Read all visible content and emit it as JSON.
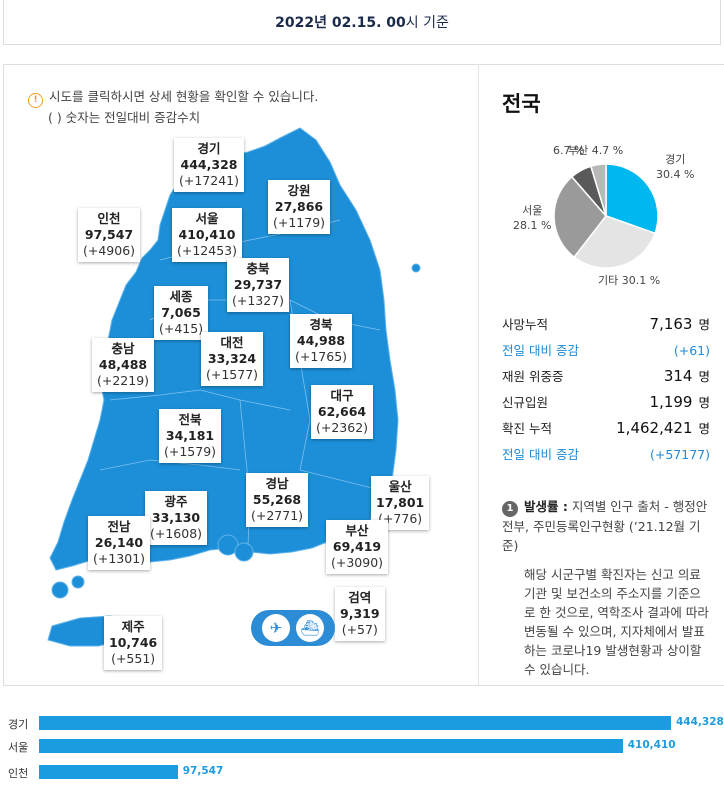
{
  "header": {
    "date_bold": "2022년 02.15. 00",
    "date_suffix": "시 기준"
  },
  "notice": {
    "line1": "시도를 클릭하시면 상세 현황을 확인할 수 있습니다.",
    "line2": "( ) 숫자는 전일대비 증감수치",
    "icon": "info-icon"
  },
  "regions": [
    {
      "name": "경기",
      "total": "444,328",
      "delta": "(+17241)"
    },
    {
      "name": "강원",
      "total": "27,866",
      "delta": "(+1179)"
    },
    {
      "name": "인천",
      "total": "97,547",
      "delta": "(+4906)"
    },
    {
      "name": "서울",
      "total": "410,410",
      "delta": "(+12453)"
    },
    {
      "name": "충북",
      "total": "29,737",
      "delta": "(+1327)"
    },
    {
      "name": "세종",
      "total": "7,065",
      "delta": "(+415)"
    },
    {
      "name": "충남",
      "total": "48,488",
      "delta": "(+2219)"
    },
    {
      "name": "대전",
      "total": "33,324",
      "delta": "(+1577)"
    },
    {
      "name": "경북",
      "total": "44,988",
      "delta": "(+1765)"
    },
    {
      "name": "대구",
      "total": "62,664",
      "delta": "(+2362)"
    },
    {
      "name": "전북",
      "total": "34,181",
      "delta": "(+1579)"
    },
    {
      "name": "광주",
      "total": "33,130",
      "delta": "(+1608)"
    },
    {
      "name": "경남",
      "total": "55,268",
      "delta": "(+2771)"
    },
    {
      "name": "울산",
      "total": "17,801",
      "delta": "(+776)"
    },
    {
      "name": "전남",
      "total": "26,140",
      "delta": "(+1301)"
    },
    {
      "name": "부산",
      "total": "69,419",
      "delta": "(+3090)"
    },
    {
      "name": "검역",
      "total": "9,319",
      "delta": "(+57)"
    },
    {
      "name": "제주",
      "total": "10,746",
      "delta": "(+551)"
    }
  ],
  "transport": {
    "icons": [
      "airplane-icon",
      "ship-icon"
    ]
  },
  "national": {
    "title": "전국",
    "pie": [
      {
        "label": "경기",
        "pct": "30.4 %",
        "value": 30.4,
        "color": "#00b8f0"
      },
      {
        "label": "기타",
        "pct": "30.1 %",
        "value": 30.1,
        "color": "#e4e4e4"
      },
      {
        "label": "서울",
        "pct": "28.1 %",
        "value": 28.1,
        "color": "#9a9a9a"
      },
      {
        "label": "부산",
        "pct": "4.7 %",
        "value": 4.7,
        "color": "#b8b8b8"
      },
      {
        "label": "6.7 %",
        "pct": "",
        "value": 6.7,
        "color": "#5a5a5a"
      }
    ],
    "stats": [
      {
        "label": "사망누적",
        "value": "7,163",
        "unit": "명",
        "style": "normal"
      },
      {
        "label": "전일 대비 증감",
        "value": "(+61)",
        "unit": "",
        "style": "blue"
      },
      {
        "label": "재원 위중증",
        "value": "314",
        "unit": "명",
        "style": "normal"
      },
      {
        "label": "신규입원",
        "value": "1,199",
        "unit": "명",
        "style": "normal"
      },
      {
        "label": "확진 누적",
        "value": "1,462,421",
        "unit": "명",
        "style": "normal"
      },
      {
        "label": "전일 대비 증감",
        "value": "(+57177)",
        "unit": "",
        "style": "blue"
      }
    ],
    "footnote": {
      "num": "1",
      "title": "발생률 :",
      "first": " 지역별 인구 출처 - 행정안전부, 주민등록인구현황 (’21.12월 기준)",
      "body": "해당 시군구별 확진자는 신고 의료기관 및 보건소의 주소지를 기준으로 한 것으로, 역학조사 결과에 따라 변동될 수 있으며, 지자체에서 발표하는 코로나19 발생현황과 상이할 수 있습니다."
    }
  },
  "bar_list": [
    {
      "label": "경기",
      "value": 444328,
      "display": "444,328"
    },
    {
      "label": "서울",
      "value": 410410,
      "display": "410,410"
    },
    {
      "label": "인천",
      "value": 97547,
      "display": "97,547"
    }
  ],
  "colors": {
    "map": "#1d8fd8",
    "accent": "#1f8ad6"
  }
}
